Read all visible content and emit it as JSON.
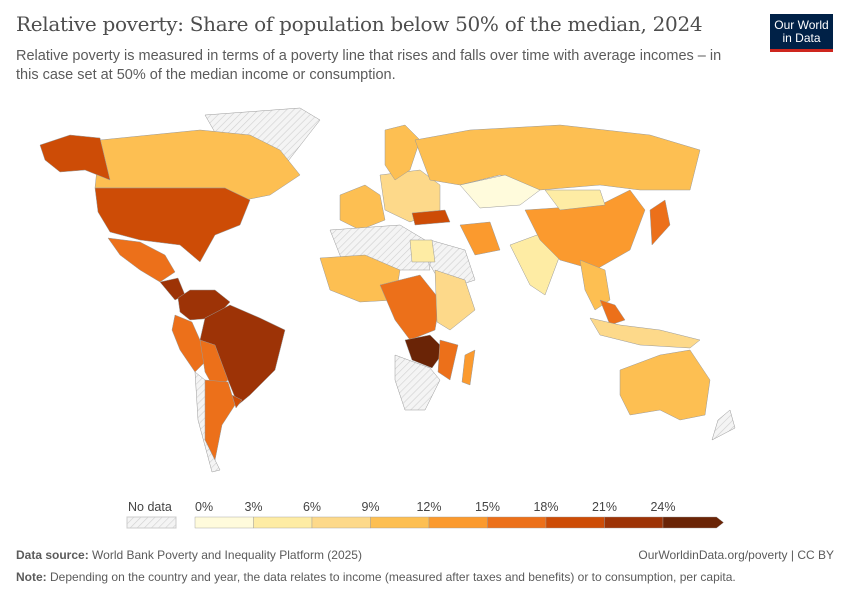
{
  "header": {
    "title": "Relative poverty: Share of population below 50% of the median, 2024",
    "subtitle": "Relative poverty is measured in terms of a poverty line that rises and falls over time with average incomes – in this case set at 50% of the median income or consumption.",
    "logo": "Our World in Data"
  },
  "legend": {
    "no_data_label": "No data",
    "ticks": [
      "0%",
      "3%",
      "6%",
      "9%",
      "12%",
      "15%",
      "18%",
      "21%",
      "24%"
    ],
    "bins": [
      {
        "range": "0-3%",
        "color": "#fffbdc"
      },
      {
        "range": "3-6%",
        "color": "#feeca4"
      },
      {
        "range": "6-9%",
        "color": "#fdd98a"
      },
      {
        "range": "9-12%",
        "color": "#fdbf52"
      },
      {
        "range": "12-15%",
        "color": "#fb9a2e"
      },
      {
        "range": "15-18%",
        "color": "#ec701a"
      },
      {
        "range": "18-21%",
        "color": "#cd4c06"
      },
      {
        "range": "21-24%",
        "color": "#9d3306"
      },
      {
        "range": ">24%",
        "color": "#6a2406"
      }
    ],
    "no_data_color": "#e6e6e6"
  },
  "map": {
    "regions": [
      {
        "name": "greenland",
        "bin": -1
      },
      {
        "name": "canada",
        "bin": 3
      },
      {
        "name": "alaska",
        "bin": 6
      },
      {
        "name": "usa",
        "bin": 6
      },
      {
        "name": "mexico",
        "bin": 5
      },
      {
        "name": "central-america",
        "bin": 7
      },
      {
        "name": "colombia-venezuela",
        "bin": 7
      },
      {
        "name": "brazil",
        "bin": 7
      },
      {
        "name": "peru-ecuador",
        "bin": 5
      },
      {
        "name": "bolivia-paraguay",
        "bin": 5
      },
      {
        "name": "chile",
        "bin": -1
      },
      {
        "name": "argentina",
        "bin": 5
      },
      {
        "name": "uruguay",
        "bin": 6
      },
      {
        "name": "western-europe",
        "bin": 3
      },
      {
        "name": "eastern-europe",
        "bin": 2
      },
      {
        "name": "scandinavia",
        "bin": 3
      },
      {
        "name": "russia",
        "bin": 3
      },
      {
        "name": "kazakhstan",
        "bin": 0
      },
      {
        "name": "turkey",
        "bin": 6
      },
      {
        "name": "iran",
        "bin": 4
      },
      {
        "name": "arabia",
        "bin": -1
      },
      {
        "name": "india",
        "bin": 1
      },
      {
        "name": "china",
        "bin": 4
      },
      {
        "name": "mongolia",
        "bin": 1
      },
      {
        "name": "japan",
        "bin": 5
      },
      {
        "name": "southeast-asia",
        "bin": 3
      },
      {
        "name": "malaysia",
        "bin": 5
      },
      {
        "name": "indonesia",
        "bin": 2
      },
      {
        "name": "north-africa",
        "bin": -1
      },
      {
        "name": "egypt",
        "bin": 1
      },
      {
        "name": "west-africa",
        "bin": 3
      },
      {
        "name": "central-africa",
        "bin": 5
      },
      {
        "name": "east-africa",
        "bin": 2
      },
      {
        "name": "zimbabwe-zambia",
        "bin": 8
      },
      {
        "name": "mozambique",
        "bin": 5
      },
      {
        "name": "southern-africa",
        "bin": -1
      },
      {
        "name": "madagascar",
        "bin": 4
      },
      {
        "name": "australia",
        "bin": 3
      },
      {
        "name": "antarctic-nz",
        "bin": -1
      }
    ]
  },
  "footer": {
    "source_label": "Data source:",
    "source": "World Bank Poverty and Inequality Platform (2025)",
    "link": "OurWorldinData.org/poverty | CC BY",
    "note_label": "Note:",
    "note": "Depending on the country and year, the data relates to income (measured after taxes and benefits) or to consumption, per capita."
  }
}
